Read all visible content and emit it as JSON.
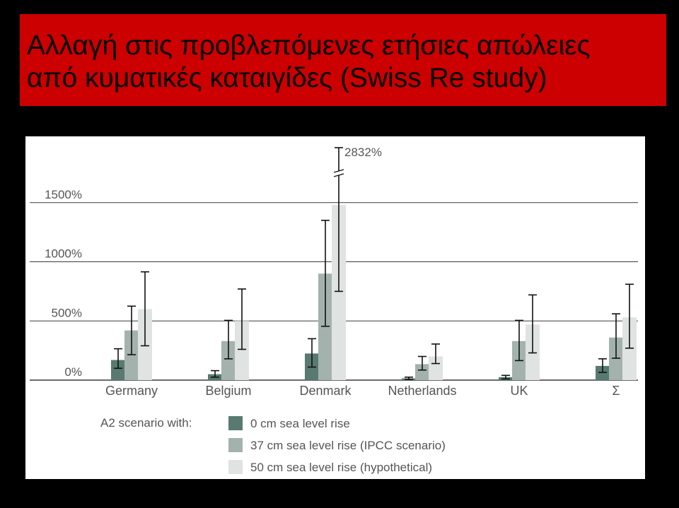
{
  "slide": {
    "title_lines": [
      "Αλλαγή στις προβλεπόμενες ετήσιες απώλειες",
      "από κυματικές καταιγίδες (Swiss Re study)"
    ]
  },
  "colors": {
    "background": "#000000",
    "title_banner": "#cc0000",
    "panel": "#ffffff",
    "series": [
      "#587a70",
      "#a3b2ad",
      "#dfe3e1"
    ],
    "grid": "#3a3a3a",
    "text": "#555555"
  },
  "chart_data": {
    "type": "bar",
    "categories": [
      "Germany",
      "Belgium",
      "Denmark",
      "Netherlands",
      "UK",
      "Σ"
    ],
    "y_tick_labels": [
      "0%",
      "500%",
      "1000%",
      "1500%"
    ],
    "y_ticks": [
      0,
      500,
      1000,
      1500
    ],
    "ylim": [
      0,
      1500
    ],
    "grid": true,
    "legend_title": "A2 scenario with:",
    "legend_position": "bottom",
    "series": [
      {
        "name": "0 cm sea level rise",
        "values": [
          170,
          50,
          225,
          15,
          25,
          120
        ],
        "error_low": [
          100,
          25,
          110,
          5,
          10,
          65
        ],
        "error_high": [
          265,
          80,
          350,
          25,
          40,
          180
        ]
      },
      {
        "name": "37 cm sea level rise (IPCC scenario)",
        "values": [
          420,
          330,
          900,
          135,
          330,
          360
        ],
        "error_low": [
          215,
          180,
          455,
          85,
          165,
          185
        ],
        "error_high": [
          625,
          505,
          1350,
          200,
          505,
          560
        ]
      },
      {
        "name": "50 cm sea level rise (hypothetical)",
        "values": [
          600,
          500,
          1480,
          200,
          470,
          530
        ],
        "error_low": [
          290,
          260,
          750,
          140,
          230,
          270
        ],
        "error_high": [
          915,
          770,
          2832,
          305,
          720,
          810
        ]
      }
    ],
    "annotations": [
      {
        "text": "2832%",
        "category": "Denmark",
        "series": 2,
        "value": 2832
      }
    ]
  }
}
